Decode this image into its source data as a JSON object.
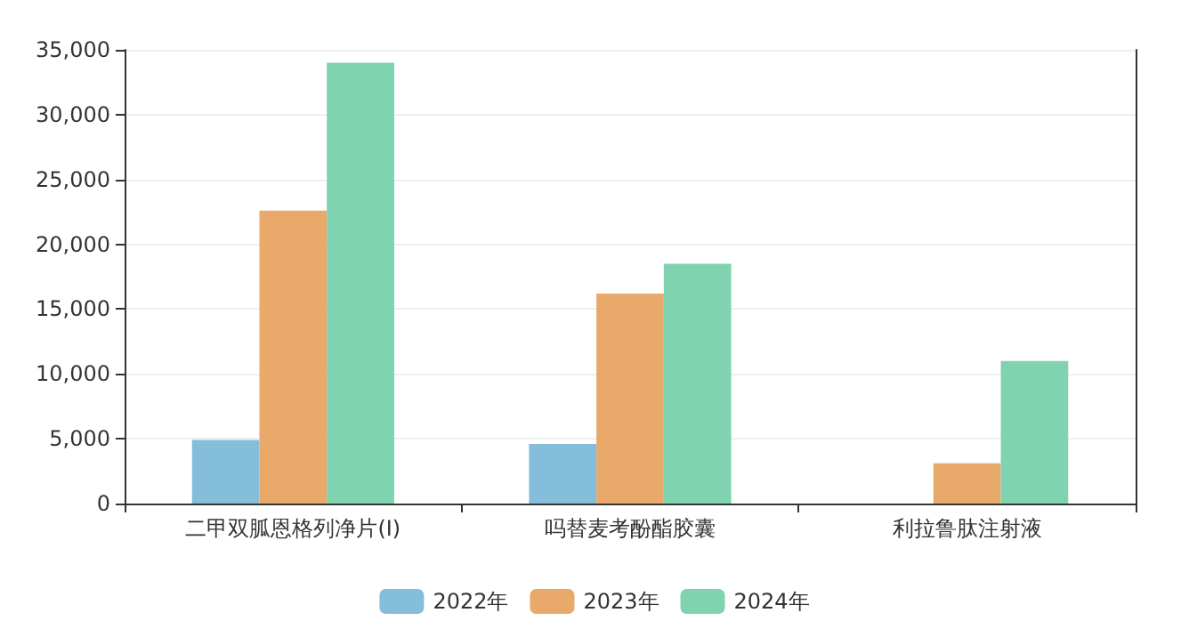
{
  "chart_data": {
    "type": "bar",
    "categories": [
      "二甲双胍恩格列净片(Ⅰ)",
      "吗替麦考酚酯胶囊",
      "利拉鲁肽注射液"
    ],
    "series": [
      {
        "name": "2022年",
        "color": "#85bedb",
        "values": [
          4900,
          4600,
          null
        ]
      },
      {
        "name": "2023年",
        "color": "#e8a96b",
        "values": [
          22600,
          16200,
          3100
        ]
      },
      {
        "name": "2024年",
        "color": "#7fd3b1",
        "values": [
          34000,
          18500,
          11000
        ]
      }
    ],
    "ylim": [
      0,
      35000
    ],
    "yticks": [
      0,
      {
        "value": 5000,
        "label": "5,000"
      },
      {
        "value": 10000,
        "label": "10,000"
      },
      {
        "value": 15000,
        "label": "15,000"
      },
      {
        "value": 20000,
        "label": "20,000"
      },
      {
        "value": 25000,
        "label": "25,000"
      },
      {
        "value": 30000,
        "label": "30,000"
      },
      {
        "value": 35000,
        "label": "35,000"
      }
    ],
    "grid": "y",
    "legend": "bottom"
  }
}
